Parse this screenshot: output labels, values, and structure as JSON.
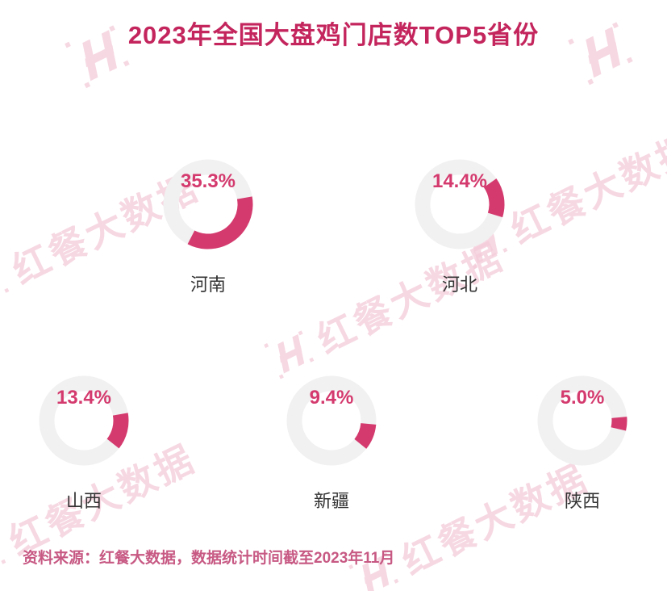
{
  "title": "2023年全国大盘鸡门店数TOP5省份",
  "footer": "资料来源：红餐大数据，数据统计时间截至2023年11月",
  "watermark": {
    "text": "红餐大数据"
  },
  "colors": {
    "accent": "#d43a6e",
    "title": "#c3255c",
    "footer": "#c75983",
    "ring": "#f1f1f1",
    "watermark": "#f4cbd9",
    "label": "#333333"
  },
  "chart_data": {
    "type": "pie",
    "subtype": "donut-gauge-grid",
    "title": "2023年全国大盘鸡门店数TOP5省份",
    "unit": "%",
    "legend_position": "none",
    "series": [
      {
        "name": "河南",
        "value": 35.3,
        "label": "35.3%",
        "start_angle": 80
      },
      {
        "name": "河北",
        "value": 14.4,
        "label": "14.4%",
        "start_angle": 55
      },
      {
        "name": "山西",
        "value": 13.4,
        "label": "13.4%",
        "start_angle": 80
      },
      {
        "name": "新疆",
        "value": 9.4,
        "label": "9.4%",
        "start_angle": 95
      },
      {
        "name": "陕西",
        "value": 5.0,
        "label": "5.0%",
        "start_angle": 85
      }
    ],
    "source_note": "资料来源：红餐大数据，数据统计时间截至2023年11月"
  }
}
